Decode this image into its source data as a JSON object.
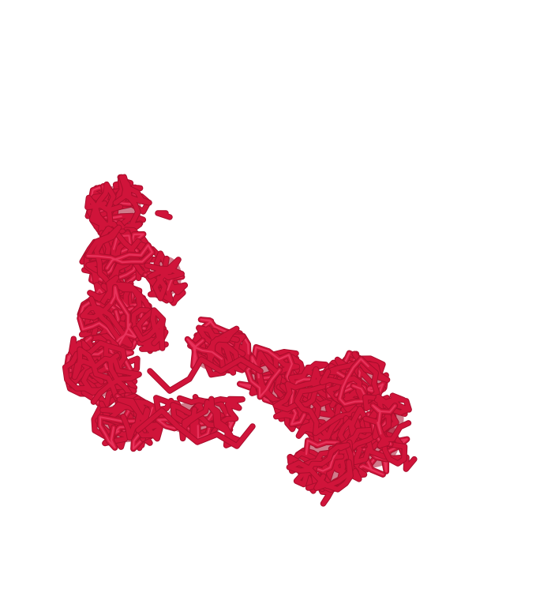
{
  "viewer": {
    "background_color": "#ffffff",
    "structure_color": "#d0143a",
    "structure_shadow_color": "#a80e2c",
    "structure_highlight_color": "#e8325a",
    "representation": "backbone-trace",
    "subject": "protein-structure"
  }
}
